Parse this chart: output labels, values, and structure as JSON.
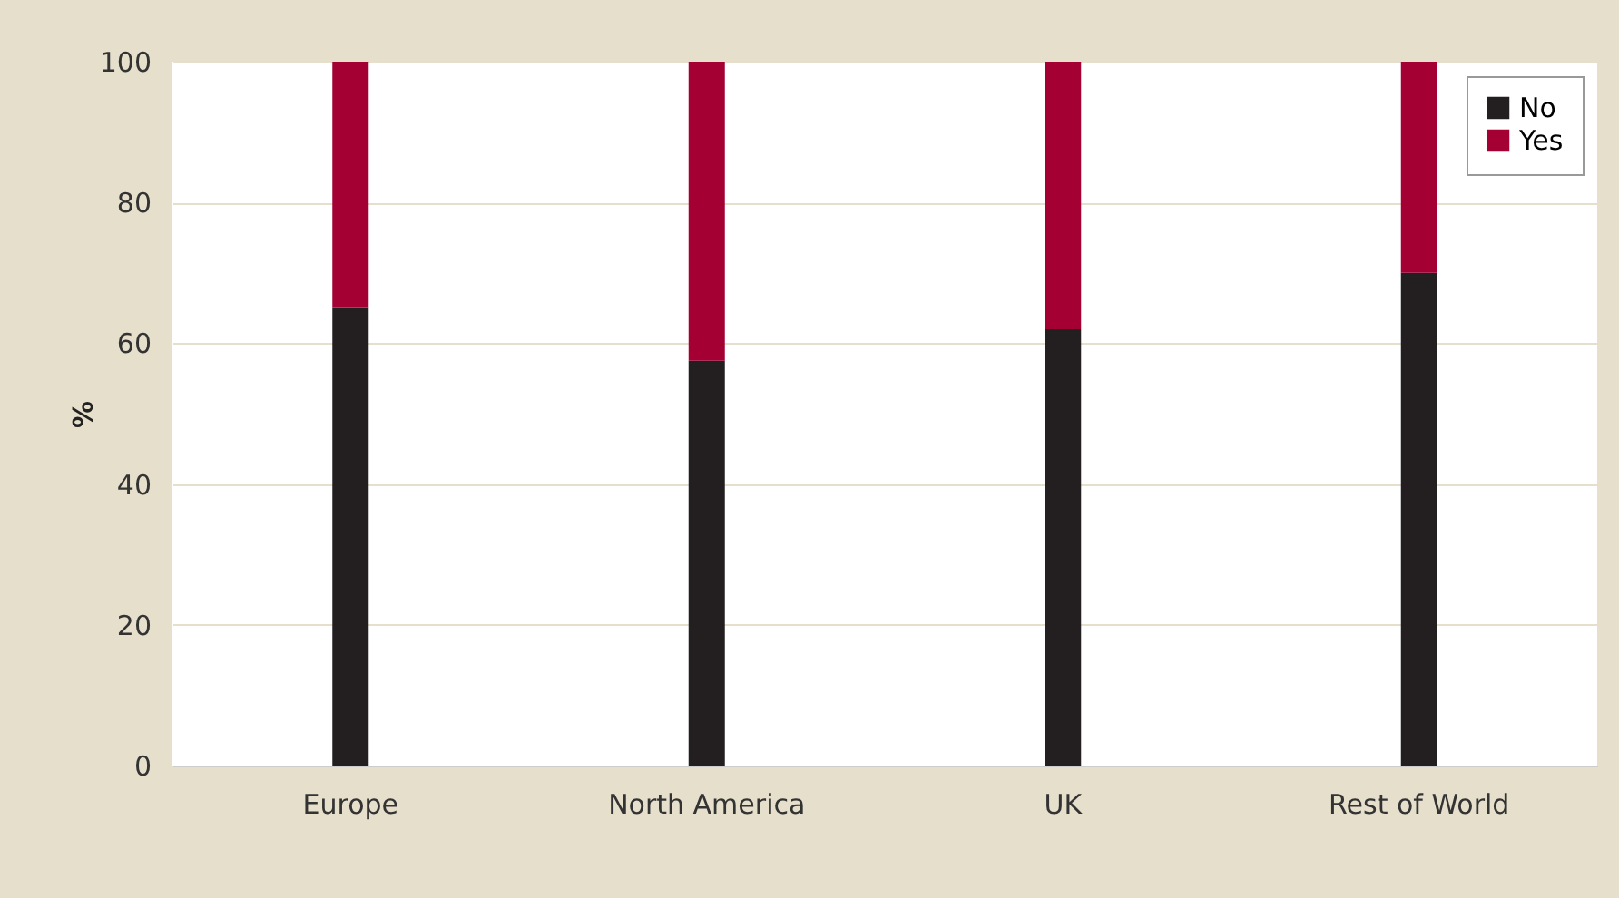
{
  "chart_data": {
    "type": "bar",
    "stacked": true,
    "ylabel": "%",
    "categories": [
      "Europe",
      "North America",
      "UK",
      "Rest of World"
    ],
    "series": [
      {
        "name": "No",
        "color": "#231f20",
        "values": [
          65,
          57.5,
          62,
          70
        ]
      },
      {
        "name": "Yes",
        "color": "#a50034",
        "values": [
          35,
          42.5,
          38,
          30
        ]
      }
    ],
    "ylim": [
      0,
      100
    ],
    "yticks": [
      0,
      20,
      40,
      60,
      80,
      100
    ],
    "grid": "y",
    "legend": "top right"
  }
}
